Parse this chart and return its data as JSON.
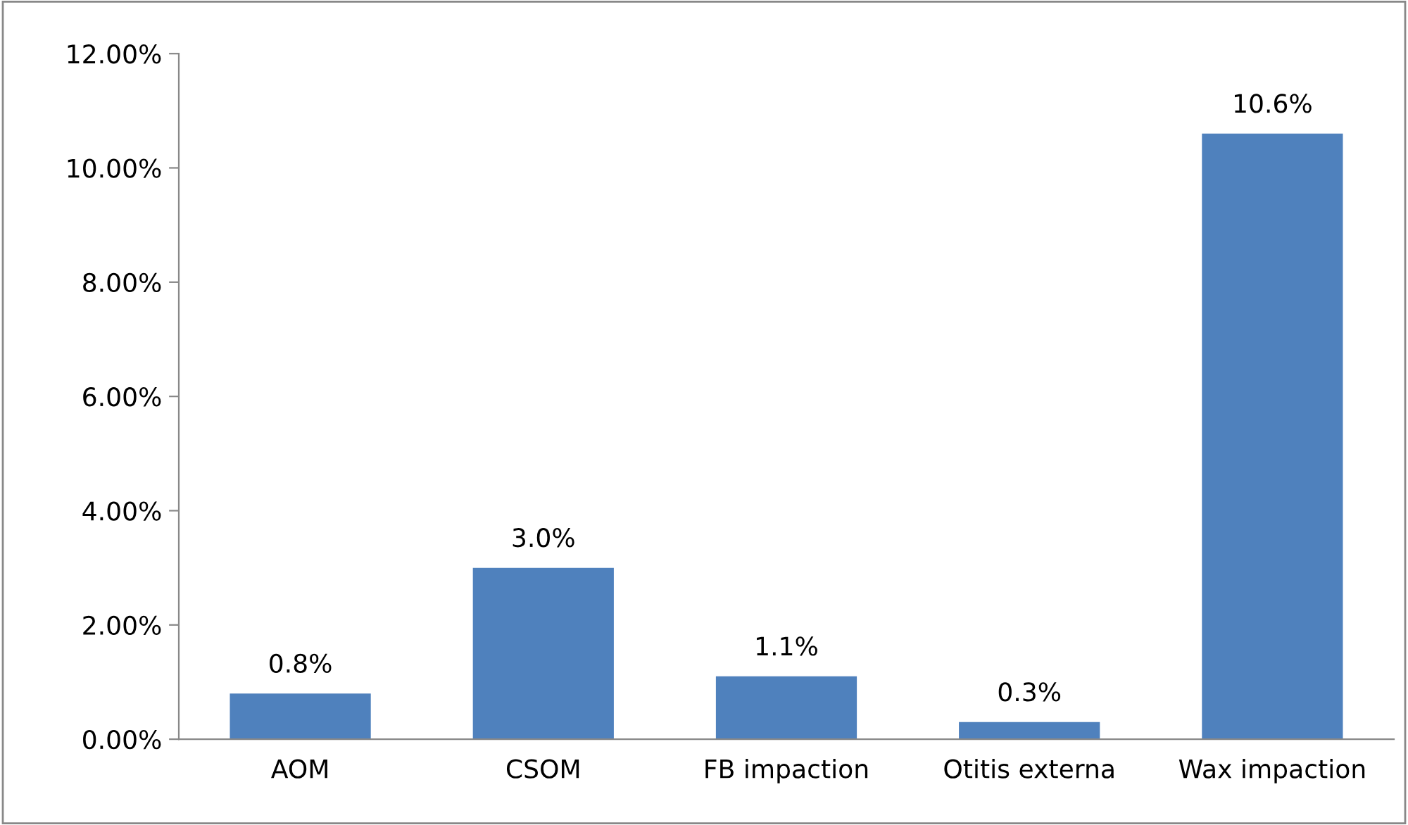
{
  "chart_data": {
    "type": "bar",
    "categories": [
      "AOM",
      "CSOM",
      "FB impaction",
      "Otitis externa",
      "Wax impaction"
    ],
    "values": [
      0.8,
      3.0,
      1.1,
      0.3,
      10.6
    ],
    "value_labels": [
      "0.8%",
      "3.0%",
      "1.1%",
      "0.3%",
      "10.6%"
    ],
    "color": "#4f81bd",
    "ylim": [
      0,
      12
    ],
    "yticks": [
      {
        "value": 0,
        "label": "0.00%"
      },
      {
        "value": 2,
        "label": "2.00%"
      },
      {
        "value": 4,
        "label": "4.00%"
      },
      {
        "value": 6,
        "label": "6.00%"
      },
      {
        "value": 8,
        "label": "8.00%"
      },
      {
        "value": 10,
        "label": "10.00%"
      },
      {
        "value": 12,
        "label": "12.00%"
      }
    ],
    "grid": false,
    "legend": false
  }
}
